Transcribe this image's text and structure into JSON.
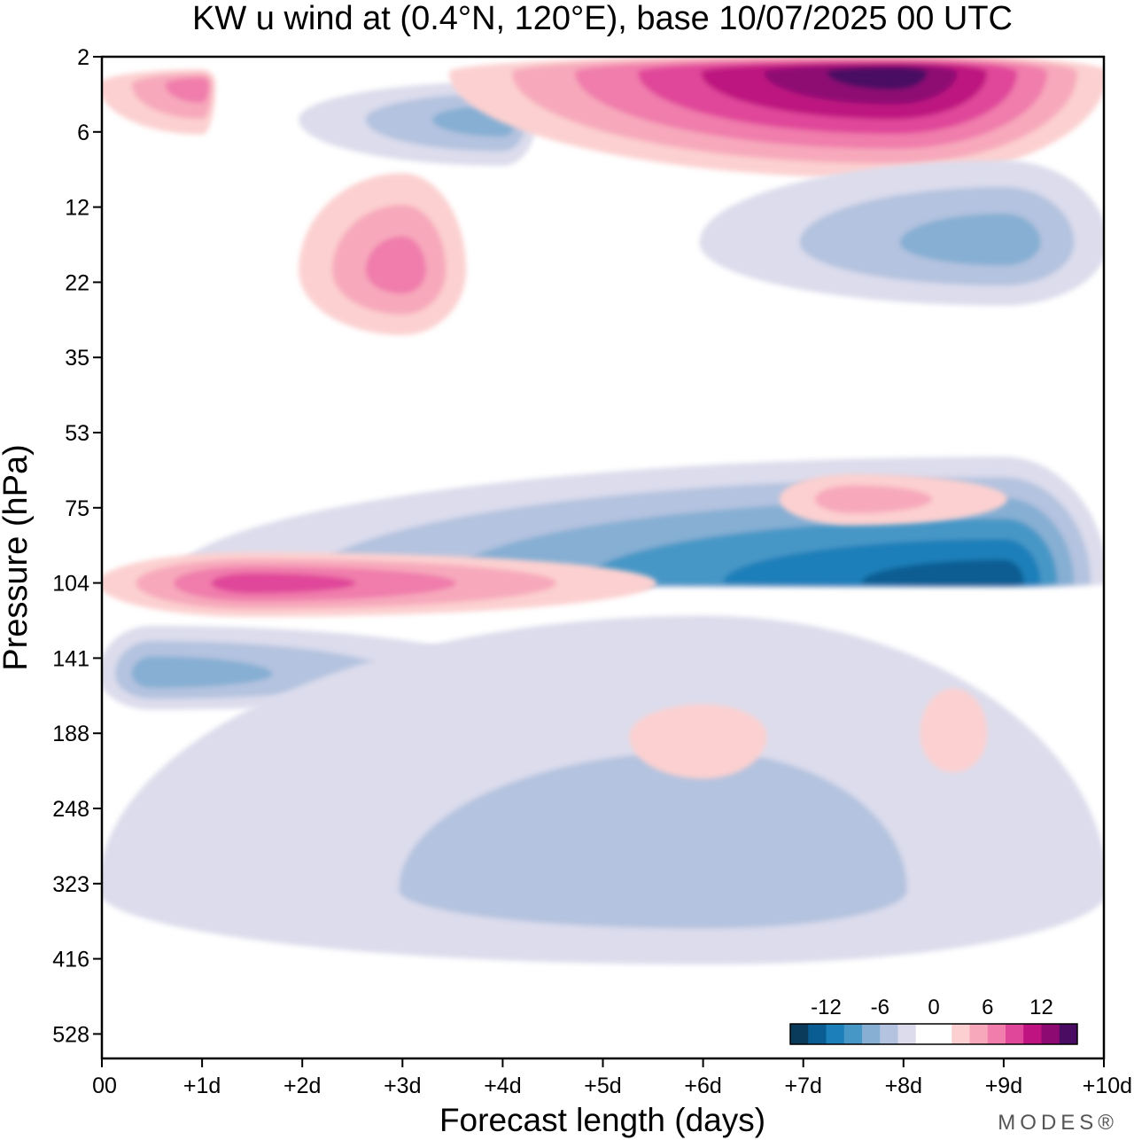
{
  "chart_data": {
    "type": "heatmap",
    "title": "KW u wind at (0.4°N, 120°E),  base 10/07/2025  00 UTC",
    "xlabel": "Forecast length (days)",
    "ylabel": "Pressure (hPa)",
    "x_ticks": [
      "00",
      "+1d",
      "+2d",
      "+3d",
      "+4d",
      "+5d",
      "+6d",
      "+7d",
      "+8d",
      "+9d",
      "+10d"
    ],
    "xlim_days": [
      0,
      10
    ],
    "y_ticks": [
      "2",
      "6",
      "12",
      "22",
      "35",
      "53",
      "75",
      "104",
      "141",
      "188",
      "248",
      "323",
      "416",
      "528"
    ],
    "ylim_hPa": [
      2,
      600
    ],
    "y_scale": "log-like (pressure levels, top = 2 hPa)",
    "colorbar": {
      "labels": [
        "-12",
        "-6",
        "0",
        "6",
        "12"
      ],
      "levels": [
        -16,
        -14,
        -12,
        -10,
        -8,
        -6,
        -4,
        -2,
        0,
        2,
        4,
        6,
        8,
        10,
        12,
        14,
        16
      ],
      "colors": [
        "#0b3b5a",
        "#0a5d93",
        "#1c7fb9",
        "#4697c6",
        "#86afd3",
        "#b4c3df",
        "#dcdcec",
        "#ffffff",
        "#ffffff",
        "#fcd0d0",
        "#f7a9bb",
        "#f07dac",
        "#e0469a",
        "#be1380",
        "#8e0a73",
        "#4a0b63"
      ],
      "placement": "bottom-right"
    },
    "features": [
      {
        "day_start": 0.7,
        "day_end": 10.0,
        "p_start": 60,
        "p_end": 105,
        "sign": "negative",
        "peak_value": -12,
        "peak_day": 9.0,
        "peak_hPa": 104
      },
      {
        "day_start": 0.0,
        "day_end": 5.5,
        "p_start": 92,
        "p_end": 118,
        "sign": "positive",
        "peak_value": 8,
        "peak_day": 1.5,
        "peak_hPa": 104
      },
      {
        "day_start": 0.0,
        "day_end": 4.0,
        "p_start": 125,
        "p_end": 170,
        "sign": "negative",
        "peak_value": -6,
        "peak_day": 0.5,
        "peak_hPa": 150
      },
      {
        "day_start": 0.0,
        "day_end": 10.0,
        "p_start": 120,
        "p_end": 420,
        "sign": "weak negative",
        "peak_value": -4,
        "peak_day": 6.0,
        "peak_hPa": 330
      },
      {
        "day_start": 5.3,
        "day_end": 6.6,
        "p_start": 170,
        "p_end": 220,
        "sign": "positive",
        "peak_value": 2,
        "peak_day": 6.0,
        "peak_hPa": 190
      },
      {
        "day_start": 8.2,
        "day_end": 8.8,
        "p_start": 160,
        "p_end": 215,
        "sign": "positive",
        "peak_value": 2,
        "peak_day": 8.5,
        "peak_hPa": 188
      },
      {
        "day_start": 2.0,
        "day_end": 3.6,
        "p_start": 9,
        "p_end": 30,
        "sign": "positive",
        "peak_value": 6,
        "peak_day": 3.0,
        "peak_hPa": 20
      },
      {
        "day_start": 2.0,
        "day_end": 4.3,
        "p_start": 3,
        "p_end": 8,
        "sign": "negative",
        "peak_value": -6,
        "peak_day": 4.0,
        "peak_hPa": 5
      },
      {
        "day_start": 3.5,
        "day_end": 10.0,
        "p_start": 2,
        "p_end": 9,
        "sign": "positive",
        "peak_value": 14,
        "peak_day": 7.9,
        "peak_hPa": 2.5
      },
      {
        "day_start": 6.0,
        "day_end": 10.0,
        "p_start": 8,
        "p_end": 25,
        "sign": "negative",
        "peak_value": -6,
        "peak_day": 9.0,
        "peak_hPa": 16
      },
      {
        "day_start": 6.8,
        "day_end": 9.0,
        "p_start": 65,
        "p_end": 80,
        "sign": "positive",
        "peak_value": 4,
        "peak_day": 7.5,
        "peak_hPa": 72
      },
      {
        "day_start": 0.0,
        "day_end": 1.1,
        "p_start": 2.5,
        "p_end": 6,
        "sign": "positive",
        "peak_value": 6,
        "peak_day": 1.0,
        "peak_hPa": 3
      }
    ]
  },
  "brand": "MODES®"
}
